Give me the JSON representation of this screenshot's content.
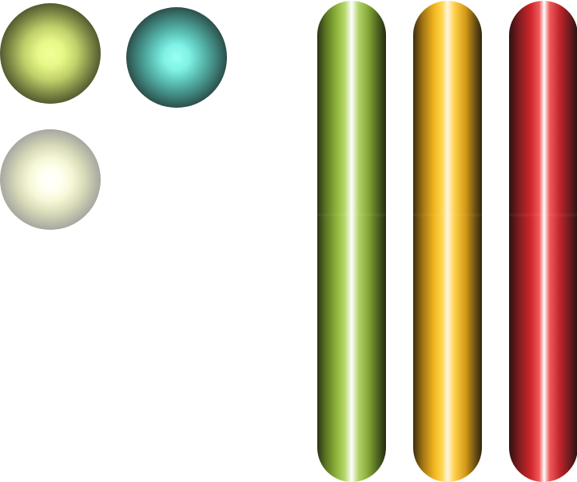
{
  "canvas": {
    "background": "#ffffff"
  },
  "orbs": [
    {
      "id": "orb-yellow",
      "name": "glowing-yellow-orb-icon",
      "colors": {
        "center": "#f2ff9a",
        "edge": "#151611"
      }
    },
    {
      "id": "orb-cyan",
      "name": "glowing-cyan-orb-icon",
      "colors": {
        "center": "#9afff4",
        "edge": "#121414"
      }
    },
    {
      "id": "orb-white",
      "name": "glowing-white-orb-icon",
      "colors": {
        "center": "#ffffff",
        "edge": "#7b7b7b"
      }
    }
  ],
  "tubes": [
    {
      "id": "tube-green",
      "name": "green-glossy-bar-icon",
      "color": "#8fb53a"
    },
    {
      "id": "tube-orange",
      "name": "orange-glossy-bar-icon",
      "color": "#f0b41e"
    },
    {
      "id": "tube-red",
      "name": "red-glossy-bar-icon",
      "color": "#d1262c"
    }
  ]
}
